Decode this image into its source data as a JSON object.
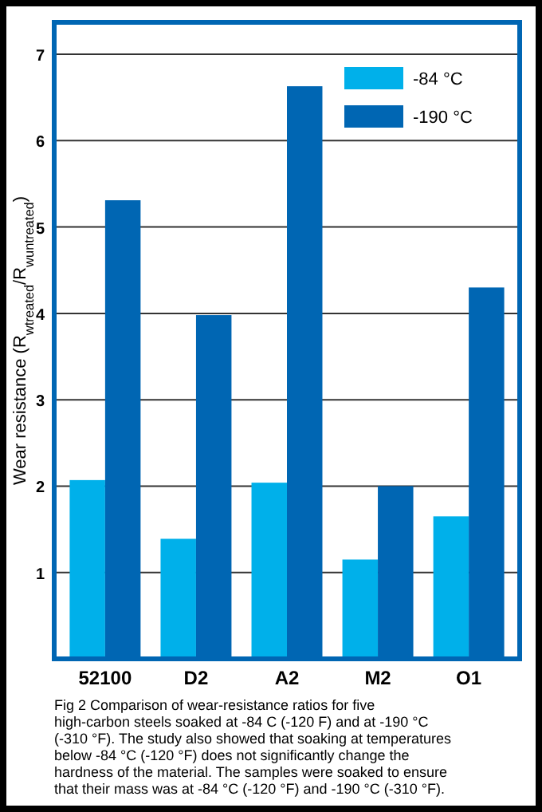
{
  "chart_data": {
    "type": "bar",
    "ylabel": "Wear resistance (R$_{wtreated}$/R$_{wuntreated}$)",
    "categories": [
      "52100",
      "D2",
      "A2",
      "M2",
      "O1"
    ],
    "series": [
      {
        "name": "-84 °C",
        "color": "#00b0ea",
        "values": [
          2.07,
          1.39,
          2.04,
          1.15,
          1.65
        ]
      },
      {
        "name": "-190 °C",
        "color": "#0066b3",
        "values": [
          5.31,
          3.98,
          6.63,
          2.0,
          4.3
        ]
      }
    ],
    "ylim": [
      0,
      7.37
    ],
    "yticks": [
      1,
      2,
      3,
      4,
      5,
      6,
      7
    ],
    "grid": "y",
    "legend": "top right",
    "annotations": [
      "Fig 2 Comparison of wear-resistance ratios for five high-carbon steels soaked at -84 C (-120 F) and at -190 °C (-310 °F). The study also showed that soaking at temperatures below -84 °C (-120 °F) does not significantly change the hardness of the material. The samples were soaked to ensure that their mass was at -84 °C (-120 °F) and -190 °C (-310 °F)."
    ]
  }
}
